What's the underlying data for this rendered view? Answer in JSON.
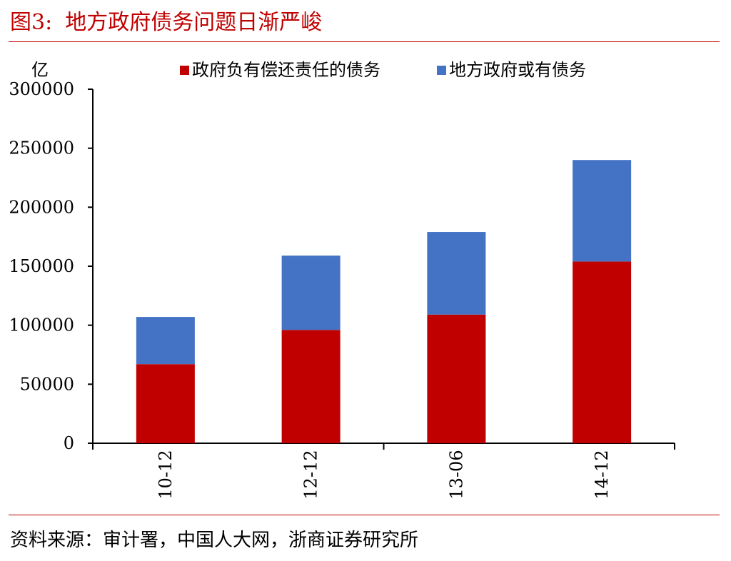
{
  "figure": {
    "number": "图3:",
    "title": "地方政府债务问题日渐严峻",
    "source": "资料来源：审计署，中国人大网，浙商证券研究所"
  },
  "chart_data": {
    "type": "bar",
    "stacked": true,
    "unit_label": "亿",
    "categories": [
      "10-12",
      "12-12",
      "13-06",
      "14-12"
    ],
    "series": [
      {
        "name": "政府负有偿还责任的债务",
        "color": "#c00000",
        "values": [
          67000,
          96000,
          109000,
          154000
        ]
      },
      {
        "name": "地方政府或有债务",
        "color": "#4472c4",
        "values": [
          40000,
          63000,
          70000,
          86000
        ]
      }
    ],
    "ylim": [
      0,
      300000
    ],
    "yticks": [
      0,
      50000,
      100000,
      150000,
      200000,
      250000,
      300000
    ],
    "legend_position": "top",
    "grid": false
  }
}
